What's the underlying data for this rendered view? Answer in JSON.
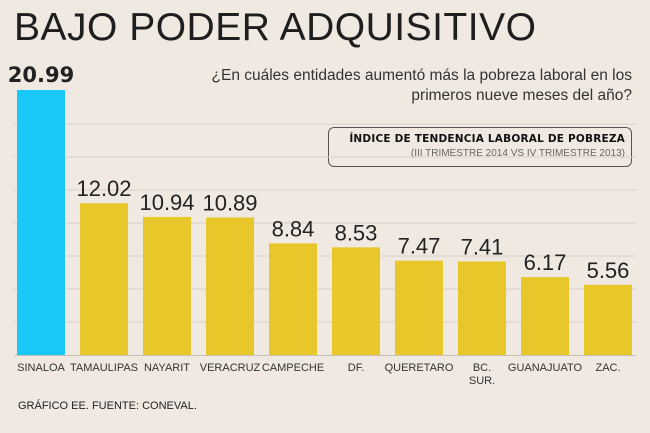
{
  "header": {
    "title": "BAJO PODER ADQUISITIVO",
    "question": "¿En cuáles entidades aumentó más la pobreza laboral en los primeros nueve meses del año?"
  },
  "index_box": {
    "title": "ÍNDICE DE TENDENCIA LABORAL DE POBREZA",
    "subtitle": "(III TRIMESTRE 2014 VS IV TRIMESTRE 2013)"
  },
  "footer": {
    "source": "GRÁFICO EE. FUENTE: CONEVAL."
  },
  "colors": {
    "highlight": "#19c8f7",
    "bar": "#e8c72a",
    "background": "#efe9e2",
    "grid": "#d8d0c8"
  },
  "chart_data": {
    "type": "bar",
    "categories": [
      [
        "SINALOA"
      ],
      [
        "TAMAULIPAS"
      ],
      [
        "NAYARIT"
      ],
      [
        "VERACRUZ"
      ],
      [
        "CAMPECHE"
      ],
      [
        "DF."
      ],
      [
        "QUERETARO"
      ],
      [
        "BC.",
        "SUR."
      ],
      [
        "GUANAJUATO"
      ],
      [
        "ZAC."
      ]
    ],
    "values": [
      20.99,
      12.02,
      10.94,
      10.89,
      8.84,
      8.53,
      7.47,
      7.41,
      6.17,
      5.56
    ],
    "value_labels": [
      "20.99",
      "12.02",
      "10.94",
      "10.89",
      "8.84",
      "8.53",
      "7.47",
      "7.41",
      "6.17",
      "5.56"
    ],
    "highlight_index": 0,
    "ylim": [
      0,
      20.99
    ],
    "grid": true,
    "title": "",
    "xlabel": "",
    "ylabel": ""
  }
}
